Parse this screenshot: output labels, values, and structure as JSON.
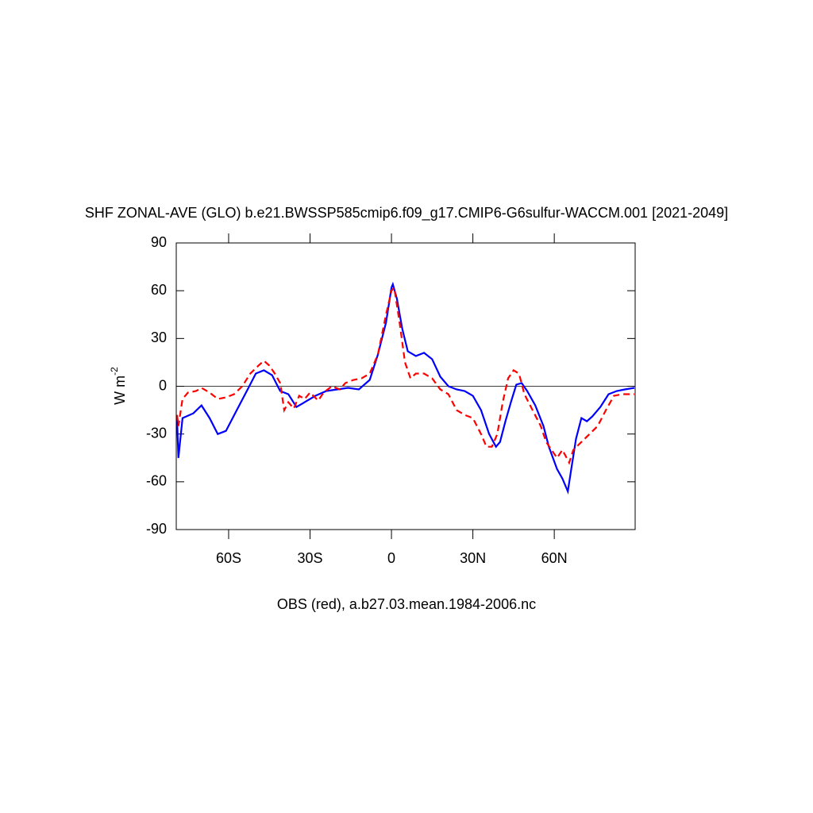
{
  "chart_data": {
    "type": "line",
    "title": "SHF ZONAL-AVE (GLO) b.e21.BWSSP585cmip6.f09_g17.CMIP6-G6sulfur-WACCM.001 [2021-2049]",
    "xlabel": "OBS (red), a.b27.03.mean.1984-2006.nc",
    "ylabel": "W m",
    "ylabel_superscript": "-2",
    "xlim": [
      -79.3,
      89.8
    ],
    "ylim": [
      -90,
      90
    ],
    "xticks": [
      {
        "value": -60,
        "label": "60S"
      },
      {
        "value": -30,
        "label": "30S"
      },
      0,
      {
        "value": 30,
        "label": "30N"
      },
      {
        "value": 60,
        "label": "60N"
      }
    ],
    "yticks": [
      -90,
      -60,
      -30,
      0,
      30,
      60,
      90
    ],
    "zero_line": 0,
    "series": [
      {
        "color": "#0000ff",
        "dash": "solid",
        "x": [
          -79,
          -78.5,
          -77,
          -73,
          -70,
          -67,
          -64,
          -61,
          -57,
          -53,
          -50,
          -47,
          -44,
          -41,
          -38,
          -35,
          -32,
          -28,
          -24,
          -20,
          -16,
          -12,
          -8,
          -5,
          -2,
          0,
          0.5,
          2,
          4,
          6,
          9,
          12,
          15,
          18,
          21,
          24,
          27,
          30,
          33,
          36,
          38.5,
          40,
          42,
          44,
          46,
          48,
          50,
          53,
          56,
          58,
          61,
          63,
          65,
          66,
          68,
          70,
          72,
          74,
          77,
          80,
          83,
          86,
          89.5
        ],
        "values": [
          -20,
          -45,
          -20,
          -17,
          -12,
          -20,
          -30,
          -28,
          -15,
          -2,
          8,
          10,
          7,
          -3,
          -5,
          -13,
          -10,
          -6,
          -3,
          -2,
          -1,
          -2,
          4,
          20,
          40,
          62,
          64,
          55,
          36,
          22,
          19,
          21,
          17,
          6,
          0,
          -2,
          -3,
          -6,
          -15,
          -30,
          -38,
          -35,
          -22,
          -10,
          1,
          2,
          -3,
          -12,
          -25,
          -38,
          -52,
          -58,
          -66,
          -55,
          -33,
          -20,
          -22,
          -19,
          -13,
          -5,
          -3,
          -2,
          -1
        ]
      },
      {
        "color": "#ff0000",
        "dash": "dashed",
        "x": [
          -79,
          -78.5,
          -77,
          -75,
          -72,
          -70,
          -67,
          -64,
          -61,
          -58,
          -55,
          -52,
          -49,
          -47,
          -45,
          -43,
          -41,
          -39.5,
          -38,
          -36,
          -34,
          -32,
          -30,
          -27,
          -25,
          -22,
          -19,
          -17,
          -14,
          -11,
          -8,
          -5,
          -2,
          0,
          1,
          3,
          5,
          7,
          9,
          12,
          15,
          18,
          21,
          24,
          27,
          30,
          33,
          35,
          37,
          39,
          41,
          43,
          45,
          47,
          49,
          52,
          55,
          57,
          59,
          61,
          63,
          65.5,
          67,
          70,
          73,
          76,
          79,
          82,
          85,
          89.5
        ],
        "values": [
          -18,
          -25,
          -8,
          -4,
          -3,
          -1,
          -4,
          -8,
          -7,
          -5,
          0,
          8,
          13,
          16,
          13,
          8,
          2,
          -15,
          -10,
          -14,
          -6,
          -8,
          -4,
          -9,
          -4,
          0,
          -2,
          2,
          4,
          5,
          8,
          20,
          45,
          60,
          62,
          40,
          15,
          5,
          8,
          8,
          5,
          -2,
          -5,
          -15,
          -18,
          -20,
          -30,
          -38,
          -38,
          -30,
          -10,
          5,
          10,
          8,
          -5,
          -15,
          -25,
          -35,
          -40,
          -45,
          -40,
          -48,
          -40,
          -35,
          -30,
          -25,
          -15,
          -6,
          -5,
          -5
        ]
      }
    ]
  }
}
